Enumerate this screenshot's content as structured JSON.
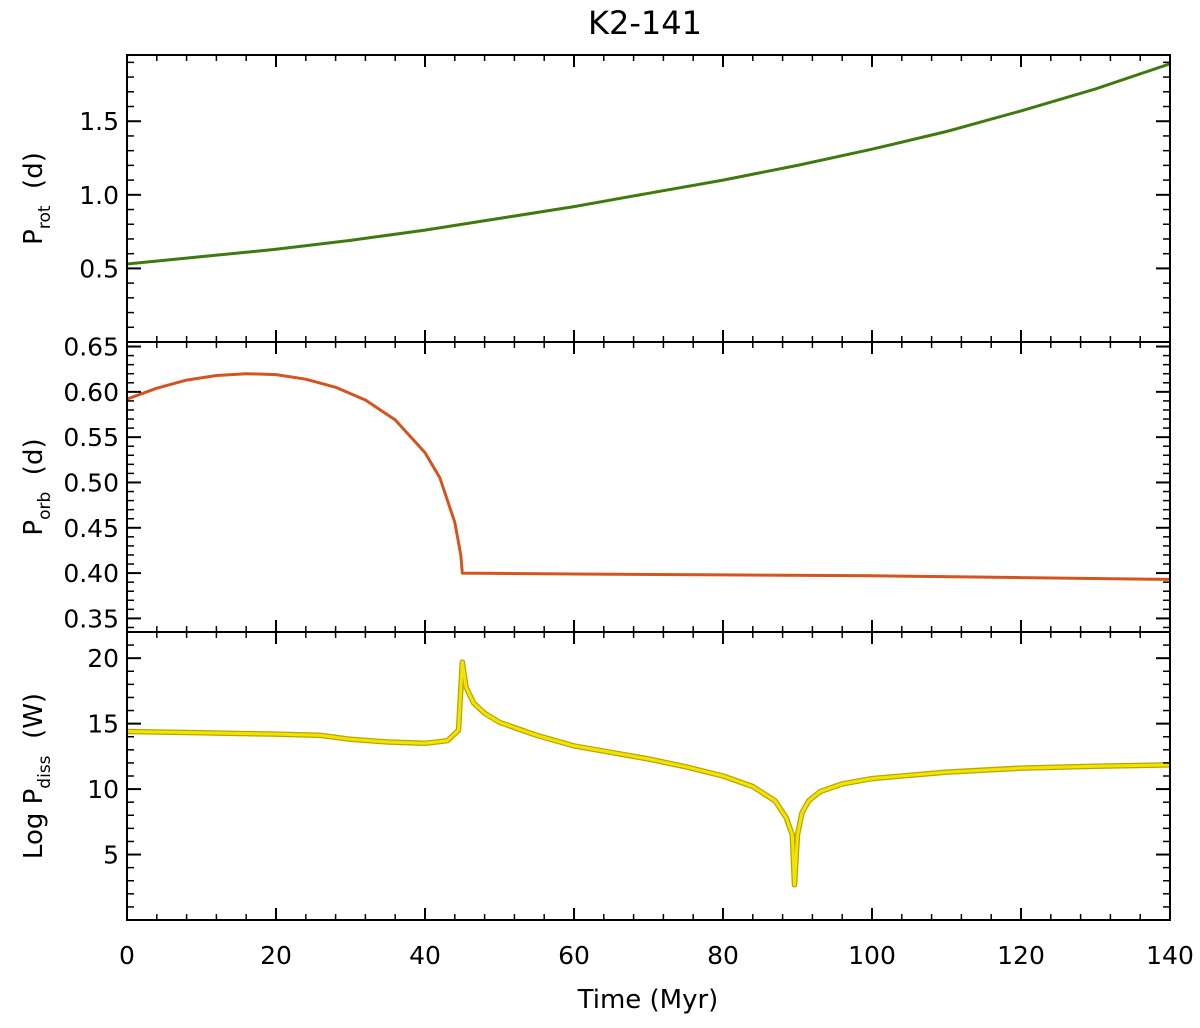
{
  "title": "K2-141",
  "xlabel": "Time (Myr)",
  "chart_data": [
    {
      "type": "line",
      "ylabel": {
        "main": "P",
        "sub": "rot",
        "unit": "(d)"
      },
      "xlim": [
        0,
        140
      ],
      "ylim": [
        0,
        1.95
      ],
      "y_ticks": [
        0.5,
        1.0,
        1.5
      ],
      "y_tick_labels": [
        "0.5",
        "1.0",
        "1.5"
      ],
      "line_color": "#3f7a10",
      "x": [
        0,
        10,
        20,
        30,
        40,
        50,
        60,
        70,
        80,
        90,
        100,
        110,
        120,
        130,
        140
      ],
      "y": [
        0.53,
        0.58,
        0.63,
        0.69,
        0.76,
        0.84,
        0.92,
        1.01,
        1.1,
        1.2,
        1.31,
        1.43,
        1.57,
        1.72,
        1.89
      ]
    },
    {
      "type": "line",
      "ylabel": {
        "main": "P",
        "sub": "orb",
        "unit": "(d)"
      },
      "xlim": [
        0,
        140
      ],
      "ylim": [
        0.335,
        0.655
      ],
      "y_ticks": [
        0.35,
        0.4,
        0.45,
        0.5,
        0.55,
        0.6,
        0.65
      ],
      "y_tick_labels": [
        "0.35",
        "0.40",
        "0.45",
        "0.50",
        "0.55",
        "0.60",
        "0.65"
      ],
      "line_color": "#d2541e",
      "x": [
        0,
        4,
        8,
        12,
        16,
        20,
        24,
        28,
        32,
        36,
        40,
        42,
        44,
        44.8,
        45,
        60,
        80,
        100,
        120,
        140
      ],
      "y": [
        0.592,
        0.604,
        0.613,
        0.618,
        0.62,
        0.619,
        0.614,
        0.605,
        0.591,
        0.569,
        0.533,
        0.505,
        0.456,
        0.42,
        0.4,
        0.399,
        0.398,
        0.397,
        0.395,
        0.393
      ]
    },
    {
      "type": "line",
      "ylabel": {
        "main": "Log  P",
        "sub": "diss",
        "unit": "(W)"
      },
      "xlim": [
        0,
        140
      ],
      "ylim": [
        0,
        22
      ],
      "y_ticks": [
        5,
        10,
        15,
        20
      ],
      "y_tick_labels": [
        "5",
        "10",
        "15",
        "20"
      ],
      "line_color": "#f2e400",
      "line_edge_color": "#b8a600",
      "x": [
        0,
        5,
        10,
        15,
        20,
        26,
        30,
        35,
        40,
        43,
        44.5,
        45,
        45.5,
        46.5,
        48,
        50,
        55,
        60,
        65,
        70,
        75,
        80,
        84,
        87,
        88.5,
        89.3,
        89.6,
        90,
        90.6,
        91.5,
        93,
        96,
        100,
        110,
        120,
        130,
        140
      ],
      "y": [
        14.4,
        14.35,
        14.3,
        14.25,
        14.2,
        14.1,
        13.8,
        13.6,
        13.5,
        13.7,
        14.5,
        19.7,
        17.8,
        16.6,
        15.8,
        15.1,
        14.1,
        13.3,
        12.8,
        12.3,
        11.7,
        11.0,
        10.2,
        9.1,
        7.8,
        6.5,
        2.7,
        6.5,
        8.2,
        9.1,
        9.8,
        10.4,
        10.8,
        11.3,
        11.6,
        11.75,
        11.85
      ]
    }
  ]
}
